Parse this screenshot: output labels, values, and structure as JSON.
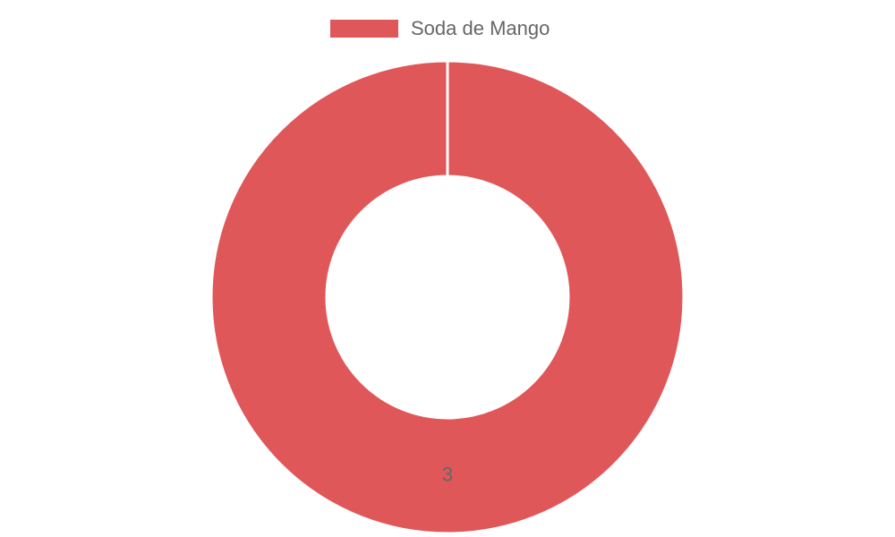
{
  "chart_data": {
    "type": "doughnut",
    "categories": [
      "Soda de Mango"
    ],
    "values": [
      3
    ],
    "colors": [
      "#e05759"
    ],
    "legend": "top"
  }
}
